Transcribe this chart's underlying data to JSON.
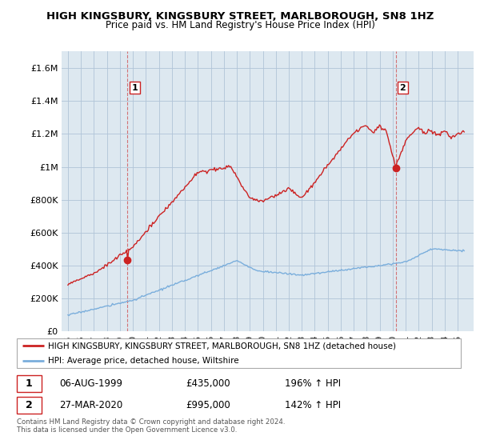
{
  "title": "HIGH KINGSBURY, KINGSBURY STREET, MARLBOROUGH, SN8 1HZ",
  "subtitle": "Price paid vs. HM Land Registry's House Price Index (HPI)",
  "legend_line1": "HIGH KINGSBURY, KINGSBURY STREET, MARLBOROUGH, SN8 1HZ (detached house)",
  "legend_line2": "HPI: Average price, detached house, Wiltshire",
  "footnote": "Contains HM Land Registry data © Crown copyright and database right 2024.\nThis data is licensed under the Open Government Licence v3.0.",
  "point1_date": "06-AUG-1999",
  "point1_price": "£435,000",
  "point1_hpi": "196% ↑ HPI",
  "point1_x": 1999.59,
  "point1_y": 435000,
  "point2_date": "27-MAR-2020",
  "point2_price": "£995,000",
  "point2_hpi": "142% ↑ HPI",
  "point2_x": 2020.23,
  "point2_y": 995000,
  "red_color": "#cc2222",
  "blue_color": "#7aaedc",
  "bg_color": "#dde8f0",
  "grid_color": "#b0c4d8",
  "ylim_min": 0,
  "ylim_max": 1700000,
  "xlim_min": 1994.5,
  "xlim_max": 2026.2,
  "yticks": [
    0,
    200000,
    400000,
    600000,
    800000,
    1000000,
    1200000,
    1400000,
    1600000
  ],
  "ytick_labels": [
    "£0",
    "£200K",
    "£400K",
    "£600K",
    "£800K",
    "£1M",
    "£1.2M",
    "£1.4M",
    "£1.6M"
  ],
  "xtick_years": [
    1995,
    1996,
    1997,
    1998,
    1999,
    2000,
    2001,
    2002,
    2003,
    2004,
    2005,
    2006,
    2007,
    2008,
    2009,
    2010,
    2011,
    2012,
    2013,
    2014,
    2015,
    2016,
    2017,
    2018,
    2019,
    2020,
    2021,
    2022,
    2023,
    2024,
    2025
  ]
}
